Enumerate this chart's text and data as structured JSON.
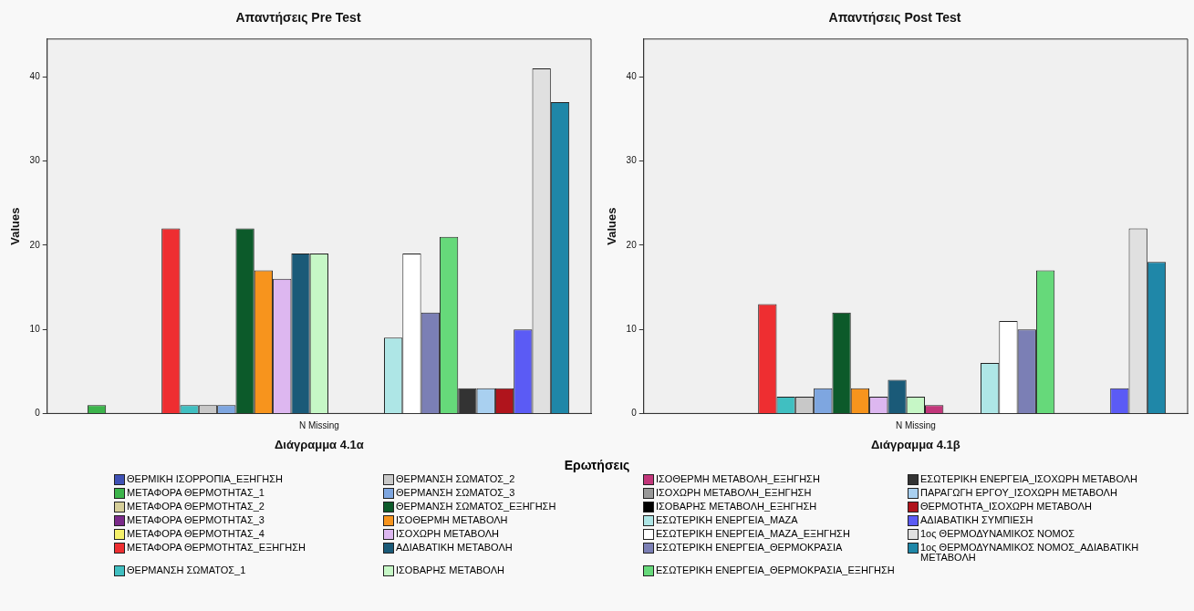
{
  "chart_data": [
    {
      "type": "bar",
      "title": "Απαντήσεις Pre Test",
      "xlabel": "Διάγραμμα 4.1α",
      "ylabel": "Values",
      "legend_title": "Ερωτήσεις",
      "legend": "bottom",
      "grid": false,
      "categories": [
        "N Missing"
      ],
      "ylim": [
        0,
        44.5
      ],
      "yticks": [
        0,
        10,
        20,
        30,
        40
      ],
      "series": [
        {
          "name": "ΘΕΡΜΙΚΗ ΙΣΟΡΡΟΠΙΑ_ΕΞΗΓΗΣΗ",
          "color": "#3f51b5",
          "values": [
            0
          ]
        },
        {
          "name": "ΜΕΤΑΦΟΡΑ ΘΕΡΜΟΤΗΤΑΣ_1",
          "color": "#3cb44b",
          "values": [
            1
          ]
        },
        {
          "name": "ΜΕΤΑΦΟΡΑ ΘΕΡΜΟΤΗΤΑΣ_2",
          "color": "#d6cf9a",
          "values": [
            0
          ]
        },
        {
          "name": "ΜΕΤΑΦΟΡΑ ΘΕΡΜΟΤΗΤΑΣ_3",
          "color": "#7b2a8a",
          "values": [
            0
          ]
        },
        {
          "name": "ΜΕΤΑΦΟΡΑ ΘΕΡΜΟΤΗΤΑΣ_4",
          "color": "#f5f06a",
          "values": [
            0
          ]
        },
        {
          "name": "ΜΕΤΑΦΟΡΑ ΘΕΡΜΟΤΗΤΑΣ_ΕΞΗΓΗΣΗ",
          "color": "#ee2e31",
          "values": [
            22
          ]
        },
        {
          "name": "ΘΕΡΜΑΝΣΗ ΣΩΜΑΤΟΣ_1",
          "color": "#40bfc1",
          "values": [
            1
          ]
        },
        {
          "name": "ΘΕΡΜΑΝΣΗ ΣΩΜΑΤΟΣ_2",
          "color": "#c8c8c8",
          "values": [
            1
          ]
        },
        {
          "name": "ΘΕΡΜΑΝΣΗ ΣΩΜΑΤΟΣ_3",
          "color": "#7ea6e0",
          "values": [
            1
          ]
        },
        {
          "name": "ΘΕΡΜΑΝΣΗ ΣΩΜΑΤΟΣ_ΕΞΗΓΗΣΗ",
          "color": "#0c5a2a",
          "values": [
            22
          ]
        },
        {
          "name": "ΙΣΟΘΕΡΜΗ ΜΕΤΑΒΟΛΗ",
          "color": "#f7941d",
          "values": [
            17
          ]
        },
        {
          "name": "ΙΣΟΧΩΡΗ ΜΕΤΑΒΟΛΗ",
          "color": "#ddb7f0",
          "values": [
            16
          ]
        },
        {
          "name": "ΑΔΙΑΒΑΤΙΚΗ ΜΕΤΑΒΟΛΗ",
          "color": "#1a5a78",
          "values": [
            19
          ]
        },
        {
          "name": "ΙΣΟΒΑΡΗΣ ΜΕΤΑΒΟΛΗ",
          "color": "#c6f7c6",
          "values": [
            19
          ]
        },
        {
          "name": "ΙΣΟΘΕΡΜΗ ΜΕΤΑΒΟΛΗ_ΕΞΗΓΗΣΗ",
          "color": "#c2367a",
          "values": [
            0
          ]
        },
        {
          "name": "ΙΣΟΧΩΡΗ ΜΕΤΑΒΟΛΗ_ΕΞΗΓΗΣΗ",
          "color": "#999999",
          "values": [
            0
          ]
        },
        {
          "name": "ΙΣΟΒΑΡΗΣ ΜΕΤΑΒΟΛΗ_ΕΞΗΓΗΣΗ",
          "color": "#000000",
          "values": [
            0
          ]
        },
        {
          "name": "ΕΣΩΤΕΡΙΚΗ ΕΝΕΡΓΕΙΑ_ΜΑΖΑ",
          "color": "#aee6e6",
          "values": [
            9
          ]
        },
        {
          "name": "ΕΣΩΤΕΡΙΚΗ ΕΝΕΡΓΕΙΑ_ΜΑΖΑ_ΕΞΗΓΗΣΗ",
          "color": "#ffffff",
          "values": [
            19
          ]
        },
        {
          "name": "ΕΣΩΤΕΡΙΚΗ ΕΝΕΡΓΕΙΑ_ΘΕΡΜΟΚΡΑΣΙΑ",
          "color": "#7b7fb5",
          "values": [
            12
          ]
        },
        {
          "name": "ΕΣΩΤΕΡΙΚΗ ΕΝΕΡΓΕΙΑ_ΘΕΡΜΟΚΡΑΣΙΑ_ΕΞΗΓΗΣΗ",
          "color": "#66d97a",
          "values": [
            21
          ]
        },
        {
          "name": "ΕΣΩΤΕΡΙΚΗ ΕΝΕΡΓΕΙΑ_ΙΣΟΧΩΡΗ ΜΕΤΑΒΟΛΗ",
          "color": "#333333",
          "values": [
            3
          ]
        },
        {
          "name": "ΠΑΡΑΓΩΓΗ ΕΡΓΟΥ_ΙΣΟΧΩΡΗ ΜΕΤΑΒΟΛΗ",
          "color": "#a9d0f0",
          "values": [
            3
          ]
        },
        {
          "name": "ΘΕΡΜΟΤΗΤΑ_ΙΣΟΧΩΡΗ ΜΕΤΑΒΟΛΗ",
          "color": "#b0141c",
          "values": [
            3
          ]
        },
        {
          "name": "ΑΔΙΑΒΑΤΙΚΗ ΣΥΜΠΙΕΣΗ",
          "color": "#5b5bf5",
          "values": [
            10
          ]
        },
        {
          "name": "1ος ΘΕΡΜΟΔΥΝΑΜΙΚΟΣ ΝΟΜΟΣ",
          "color": "#e0e0e0",
          "values": [
            41
          ]
        },
        {
          "name": "1ος ΘΕΡΜΟΔΥΝΑΜΙΚΟΣ ΝΟΜΟΣ_ΑΔΙΑΒΑΤΙΚΗ ΜΕΤΑΒΟΛΗ",
          "color": "#1f87a8",
          "values": [
            37
          ]
        }
      ]
    },
    {
      "type": "bar",
      "title": "Απαντήσεις Post Test",
      "xlabel": "Διάγραμμα 4.1β",
      "ylabel": "Values",
      "grid": false,
      "categories": [
        "N Missing"
      ],
      "ylim": [
        0,
        44.5
      ],
      "yticks": [
        0,
        10,
        20,
        30,
        40
      ],
      "series": [
        {
          "color": "#3f51b5",
          "values": [
            0
          ]
        },
        {
          "color": "#3cb44b",
          "values": [
            0
          ]
        },
        {
          "color": "#d6cf9a",
          "values": [
            0
          ]
        },
        {
          "color": "#7b2a8a",
          "values": [
            0
          ]
        },
        {
          "color": "#f5f06a",
          "values": [
            0
          ]
        },
        {
          "color": "#ee2e31",
          "values": [
            13
          ]
        },
        {
          "color": "#40bfc1",
          "values": [
            2
          ]
        },
        {
          "color": "#c8c8c8",
          "values": [
            2
          ]
        },
        {
          "color": "#7ea6e0",
          "values": [
            3
          ]
        },
        {
          "color": "#0c5a2a",
          "values": [
            12
          ]
        },
        {
          "color": "#f7941d",
          "values": [
            3
          ]
        },
        {
          "color": "#ddb7f0",
          "values": [
            2
          ]
        },
        {
          "color": "#1a5a78",
          "values": [
            4
          ]
        },
        {
          "color": "#c6f7c6",
          "values": [
            2
          ]
        },
        {
          "color": "#c2367a",
          "values": [
            1
          ]
        },
        {
          "color": "#999999",
          "values": [
            0
          ]
        },
        {
          "color": "#000000",
          "values": [
            0
          ]
        },
        {
          "color": "#aee6e6",
          "values": [
            6
          ]
        },
        {
          "color": "#ffffff",
          "values": [
            11
          ]
        },
        {
          "color": "#7b7fb5",
          "values": [
            10
          ]
        },
        {
          "color": "#66d97a",
          "values": [
            17
          ]
        },
        {
          "color": "#333333",
          "values": [
            0
          ]
        },
        {
          "color": "#a9d0f0",
          "values": [
            0
          ]
        },
        {
          "color": "#b0141c",
          "values": [
            0
          ]
        },
        {
          "color": "#5b5bf5",
          "values": [
            3
          ]
        },
        {
          "color": "#e0e0e0",
          "values": [
            22
          ]
        },
        {
          "color": "#1f87a8",
          "values": [
            18
          ]
        }
      ]
    }
  ]
}
